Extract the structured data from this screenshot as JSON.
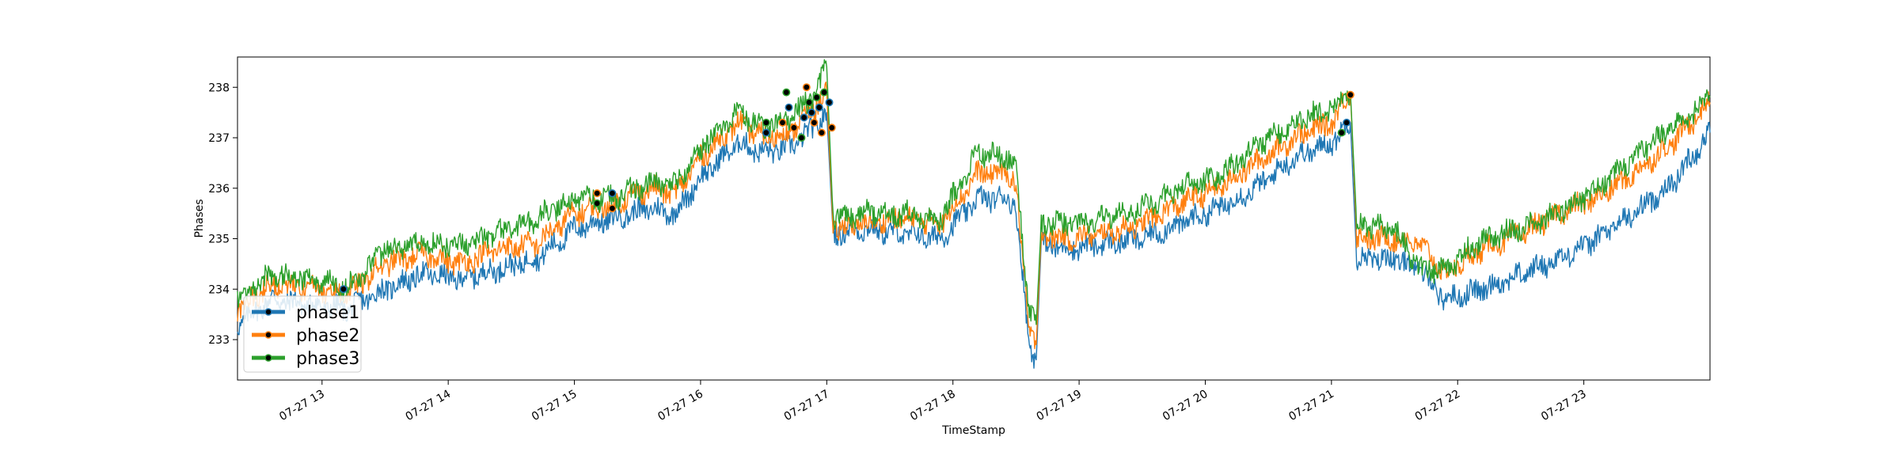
{
  "chart_data": {
    "type": "line",
    "title": "",
    "xlabel": "TimeStamp",
    "ylabel": "Phases",
    "x_range": [
      "2021-07-27 12:20",
      "2021-07-27 23:59"
    ],
    "xlim_hours": [
      12.33,
      24.0
    ],
    "ylim": [
      232.2,
      238.6
    ],
    "y_ticks": [
      233,
      234,
      235,
      236,
      237,
      238
    ],
    "x_ticks": [
      {
        "value": 13,
        "label": "07-27 13"
      },
      {
        "value": 14,
        "label": "07-27 14"
      },
      {
        "value": 15,
        "label": "07-27 15"
      },
      {
        "value": 16,
        "label": "07-27 16"
      },
      {
        "value": 17,
        "label": "07-27 17"
      },
      {
        "value": 18,
        "label": "07-27 18"
      },
      {
        "value": 19,
        "label": "07-27 19"
      },
      {
        "value": 20,
        "label": "07-27 20"
      },
      {
        "value": 21,
        "label": "07-27 21"
      },
      {
        "value": 22,
        "label": "07-27 22"
      },
      {
        "value": 23,
        "label": "07-27 23"
      }
    ],
    "grid": false,
    "legend": "lower-left",
    "x_hours": [
      12.33,
      12.6,
      12.9,
      13.2,
      13.5,
      13.8,
      14.1,
      14.4,
      14.7,
      15.0,
      15.3,
      15.6,
      15.8,
      16.0,
      16.3,
      16.5,
      16.7,
      16.9,
      17.0,
      17.05,
      17.3,
      17.6,
      17.9,
      18.2,
      18.45,
      18.5,
      18.6,
      18.66,
      18.7,
      18.9,
      19.2,
      19.5,
      19.8,
      20.1,
      20.4,
      20.7,
      21.0,
      21.15,
      21.2,
      21.5,
      21.7,
      21.9,
      22.2,
      22.5,
      22.8,
      23.1,
      23.4,
      23.7,
      24.0
    ],
    "series": [
      {
        "name": "phase1",
        "color": "#1f77b4",
        "values": [
          233.3,
          233.8,
          233.7,
          233.6,
          234.0,
          234.3,
          234.2,
          234.4,
          234.6,
          235.2,
          235.4,
          235.6,
          235.5,
          236.2,
          236.9,
          236.7,
          236.8,
          237.2,
          237.5,
          235.1,
          235.2,
          235.1,
          235.0,
          235.8,
          235.8,
          235.6,
          233.0,
          232.6,
          234.9,
          234.8,
          234.9,
          235.0,
          235.3,
          235.6,
          236.0,
          236.6,
          236.9,
          237.3,
          234.6,
          234.6,
          234.4,
          233.8,
          234.0,
          234.3,
          234.6,
          235.0,
          235.5,
          236.1,
          237.1
        ]
      },
      {
        "name": "phase2",
        "color": "#ff7f0e",
        "values": [
          233.6,
          234.1,
          234.0,
          233.9,
          234.5,
          234.7,
          234.5,
          234.8,
          234.9,
          235.5,
          235.7,
          236.0,
          235.9,
          236.6,
          237.3,
          237.0,
          237.1,
          237.6,
          237.9,
          235.2,
          235.3,
          235.4,
          235.3,
          236.3,
          236.3,
          236.0,
          233.3,
          232.9,
          235.1,
          235.0,
          235.1,
          235.3,
          235.7,
          236.0,
          236.5,
          237.0,
          237.3,
          237.9,
          235.0,
          235.0,
          234.9,
          234.3,
          234.8,
          235.1,
          235.5,
          235.8,
          236.3,
          236.9,
          237.7
        ]
      },
      {
        "name": "phase3",
        "color": "#2ca02c",
        "values": [
          233.8,
          234.3,
          234.2,
          234.0,
          234.8,
          234.9,
          234.9,
          235.1,
          235.4,
          235.8,
          235.8,
          236.1,
          236.1,
          236.8,
          237.5,
          237.2,
          237.4,
          237.8,
          238.4,
          235.4,
          235.5,
          235.5,
          235.4,
          236.7,
          236.6,
          236.4,
          233.6,
          233.3,
          235.3,
          235.3,
          235.4,
          235.6,
          236.0,
          236.2,
          236.8,
          237.3,
          237.6,
          237.9,
          235.3,
          235.2,
          234.4,
          234.4,
          235.0,
          235.2,
          235.5,
          236.0,
          236.6,
          237.2,
          237.8
        ]
      }
    ],
    "highlight_markers": {
      "marker": "black dot",
      "points": [
        {
          "x": 13.17,
          "y": 234.0
        },
        {
          "x": 15.18,
          "y": 235.9
        },
        {
          "x": 15.18,
          "y": 235.7
        },
        {
          "x": 15.3,
          "y": 235.9
        },
        {
          "x": 15.3,
          "y": 235.6
        },
        {
          "x": 16.52,
          "y": 237.3
        },
        {
          "x": 16.52,
          "y": 237.1
        },
        {
          "x": 16.65,
          "y": 237.3
        },
        {
          "x": 16.68,
          "y": 237.9
        },
        {
          "x": 16.7,
          "y": 237.6
        },
        {
          "x": 16.74,
          "y": 237.2
        },
        {
          "x": 16.8,
          "y": 237.0
        },
        {
          "x": 16.82,
          "y": 237.4
        },
        {
          "x": 16.84,
          "y": 238.0
        },
        {
          "x": 16.86,
          "y": 237.7
        },
        {
          "x": 16.88,
          "y": 237.5
        },
        {
          "x": 16.9,
          "y": 237.3
        },
        {
          "x": 16.92,
          "y": 237.8
        },
        {
          "x": 16.94,
          "y": 237.6
        },
        {
          "x": 16.96,
          "y": 237.1
        },
        {
          "x": 16.98,
          "y": 237.9
        },
        {
          "x": 17.02,
          "y": 237.7
        },
        {
          "x": 17.04,
          "y": 237.2
        },
        {
          "x": 21.08,
          "y": 237.1
        },
        {
          "x": 21.12,
          "y": 237.3
        },
        {
          "x": 21.15,
          "y": 237.85
        }
      ]
    }
  }
}
